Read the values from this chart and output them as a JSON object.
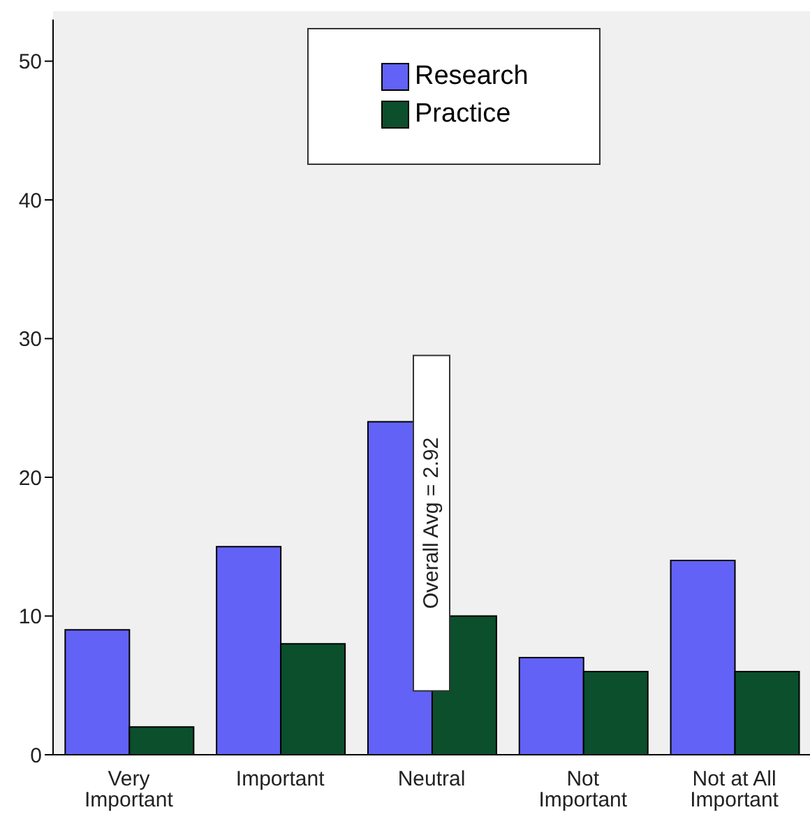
{
  "chart_data": {
    "type": "bar",
    "categories": [
      "Very Important",
      "Important",
      "Neutral",
      "Not Important",
      "Not at All Important"
    ],
    "series": [
      {
        "name": "Research",
        "color": "#6262f6",
        "values": [
          9,
          15,
          24,
          7,
          14
        ]
      },
      {
        "name": "Practice",
        "color": "#0b4f2c",
        "values": [
          2,
          8,
          10,
          6,
          6
        ]
      }
    ],
    "ylim": [
      0,
      53
    ],
    "yticks": [
      0,
      10,
      20,
      30,
      40,
      50
    ],
    "legend": "top",
    "annotations": [
      "Overall Avg = 2.92"
    ]
  }
}
